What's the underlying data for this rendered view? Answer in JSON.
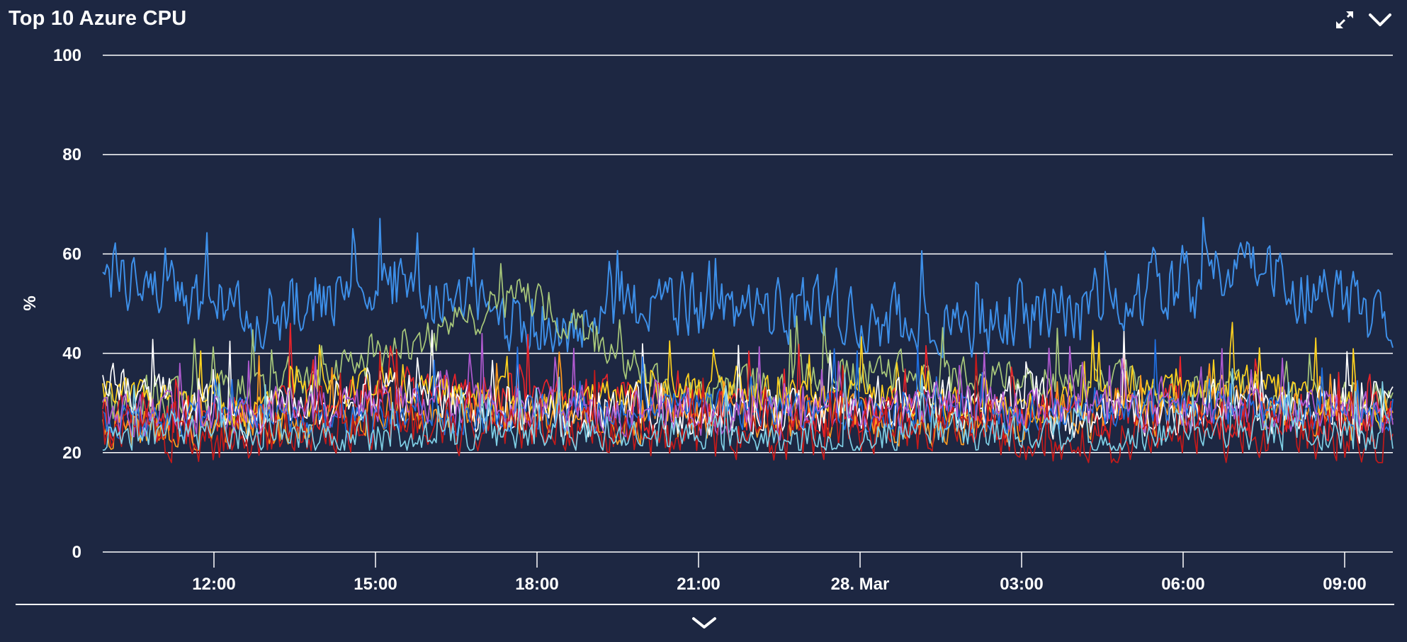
{
  "widget": {
    "title": "Top 10 Azure CPU",
    "expand_icon": "expand-icon",
    "collapse_icon": "chevron-down-icon",
    "footer_icon": "chevron-down-icon"
  },
  "chart_data": {
    "type": "line",
    "title": "Top 10 Azure CPU",
    "ylabel": "%",
    "xlabel": "",
    "ylim": [
      0,
      100
    ],
    "yticks": [
      0,
      20,
      40,
      60,
      80,
      100
    ],
    "xlim": [
      "27 Mar 09:55",
      "28 Mar 10:05"
    ],
    "xtick_labels": [
      "12:00",
      "15:00",
      "18:00",
      "21:00",
      "28. Mar",
      "03:00",
      "06:00",
      "09:00"
    ],
    "grid": true,
    "legend": "none",
    "x": [
      "09:55",
      "12:00",
      "15:00",
      "18:00",
      "21:00",
      "00:00",
      "03:00",
      "06:00",
      "09:00",
      "10:05"
    ],
    "series": [
      {
        "color": "#3d8fe8",
        "values": [
          57,
          47,
          55,
          45,
          50,
          48,
          46,
          48,
          57,
          46
        ]
      },
      {
        "color": "#a8c87a",
        "values": [
          30,
          33,
          40,
          52,
          30,
          36,
          35,
          34,
          32,
          30
        ]
      },
      {
        "color": "#e8232a",
        "values": [
          28,
          27,
          32,
          30,
          29,
          28,
          27,
          28,
          28,
          26
        ]
      },
      {
        "color": "#ffd21f",
        "values": [
          33,
          28,
          34,
          30,
          32,
          31,
          29,
          31,
          34,
          26
        ]
      },
      {
        "color": "#ff9a1f",
        "values": [
          25,
          24,
          29,
          28,
          26,
          27,
          26,
          27,
          30,
          25
        ]
      },
      {
        "color": "#ffffff",
        "values": [
          33,
          26,
          33,
          26,
          29,
          27,
          30,
          28,
          29,
          27
        ]
      },
      {
        "color": "#1f6fe0",
        "values": [
          26,
          27,
          26,
          28,
          29,
          28,
          27,
          29,
          28,
          28
        ]
      },
      {
        "color": "#b05ad0",
        "values": [
          27,
          28,
          30,
          29,
          28,
          27,
          30,
          28,
          29,
          27
        ]
      },
      {
        "color": "#c41a1a",
        "values": [
          24,
          23,
          26,
          25,
          23,
          24,
          25,
          22,
          24,
          23
        ]
      },
      {
        "color": "#7fd0e6",
        "values": [
          23,
          24,
          23,
          24,
          24,
          23,
          24,
          23,
          24,
          23
        ]
      }
    ]
  }
}
